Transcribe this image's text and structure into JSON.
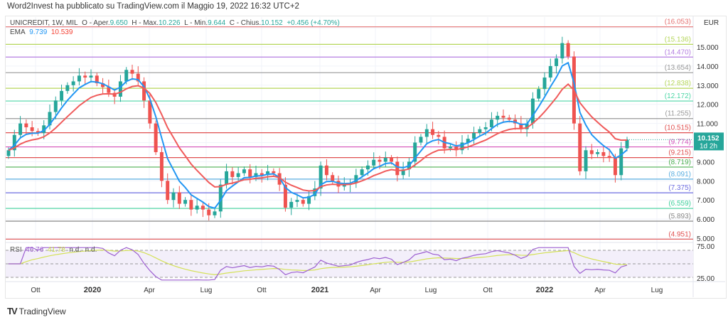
{
  "header": "Word2Invest ha pubblicato su TradingView.com il Maggio 19, 2022 16:32 UTC+2",
  "legend": {
    "symbol": "UNICREDIT, 1W, MIL",
    "o_label": "O - Aper.",
    "o": "9.650",
    "h_label": "H - Max.",
    "h": "10.226",
    "l_label": "L - Min.",
    "l": "9.644",
    "c_label": "C - Chius.",
    "c": "10.152",
    "change": "+0.456 (+4.70%)"
  },
  "ema": {
    "label": "EMA",
    "v1": "9.739",
    "v2": "10.539"
  },
  "rsi": {
    "label": "RSI",
    "v1": "46.76",
    "v2": "41.78",
    "na1": "n.d.",
    "na2": "n.d.",
    "ticks": [
      "75.00",
      "25.00"
    ]
  },
  "currency": "EUR",
  "last_price": {
    "value": "10.152",
    "countdown": "1d 2h",
    "color": "#26a69a"
  },
  "price_ticks": [
    "15.000",
    "14.000",
    "13.000",
    "12.000",
    "11.000",
    "9.000",
    "8.000",
    "7.000",
    "6.000",
    "5.000"
  ],
  "time_ticks": [
    "Ott",
    "2020",
    "Apr",
    "Lug",
    "Ott",
    "2021",
    "Apr",
    "Lug",
    "Ott",
    "2022",
    "Apr",
    "Lug"
  ],
  "levels": [
    {
      "v": "16.053",
      "c": "#e57373"
    },
    {
      "v": "15.136",
      "c": "#b5d65a"
    },
    {
      "v": "14.470",
      "c": "#b47ee0"
    },
    {
      "v": "13.654",
      "c": "#999999"
    },
    {
      "v": "12.838",
      "c": "#b5d65a"
    },
    {
      "v": "12.172",
      "c": "#4dd6a6"
    },
    {
      "v": "11.255",
      "c": "#999999"
    },
    {
      "v": "10.515",
      "c": "#e05050"
    },
    {
      "v": "9.774",
      "c": "#d44fb8"
    },
    {
      "v": "9.215",
      "c": "#e05050"
    },
    {
      "v": "8.719",
      "c": "#4caf50"
    },
    {
      "v": "8.091",
      "c": "#5aaee0"
    },
    {
      "v": "7.375",
      "c": "#6c6ce0"
    },
    {
      "v": "6.559",
      "c": "#3ccf9a"
    },
    {
      "v": "5.893",
      "c": "#888888"
    },
    {
      "v": "4.951",
      "c": "#e05050"
    }
  ],
  "closes": [
    9.6,
    10.4,
    11.0,
    10.8,
    10.6,
    10.5,
    10.9,
    11.6,
    12.2,
    12.7,
    13.0,
    13.2,
    13.5,
    13.4,
    13.5,
    13.1,
    12.9,
    12.6,
    12.4,
    13.2,
    13.8,
    13.6,
    13.2,
    12.2,
    11.0,
    9.5,
    8.0,
    7.0,
    7.4,
    6.8,
    7.0,
    6.5,
    6.7,
    6.5,
    6.2,
    6.4,
    7.8,
    8.5,
    8.2,
    8.4,
    8.6,
    8.2,
    8.4,
    8.3,
    8.5,
    8.4,
    7.8,
    6.6,
    6.9,
    7.0,
    6.8,
    7.2,
    7.6,
    8.8,
    8.3,
    8.0,
    7.7,
    7.8,
    7.9,
    8.3,
    8.6,
    8.8,
    9.1,
    9.0,
    9.2,
    9.0,
    8.3,
    8.6,
    9.0,
    10.0,
    10.3,
    10.7,
    10.4,
    10.3,
    9.7,
    9.8,
    9.6,
    10.0,
    10.2,
    10.5,
    10.7,
    10.8,
    11.2,
    11.4,
    11.3,
    11.2,
    11.0,
    10.7,
    11.0,
    12.3,
    12.8,
    13.4,
    14.0,
    14.4,
    15.2,
    14.5,
    11.0,
    8.5,
    9.6,
    9.4,
    9.5,
    9.3,
    9.2,
    8.3,
    9.7,
    10.152
  ],
  "colors": {
    "up": "#26a69a",
    "down": "#ef5350",
    "ema_fast": "#2196f3",
    "ema_slow": "#f05a5a",
    "rsi": "#9c5fd0",
    "rsi_ma": "#d4e157"
  }
}
